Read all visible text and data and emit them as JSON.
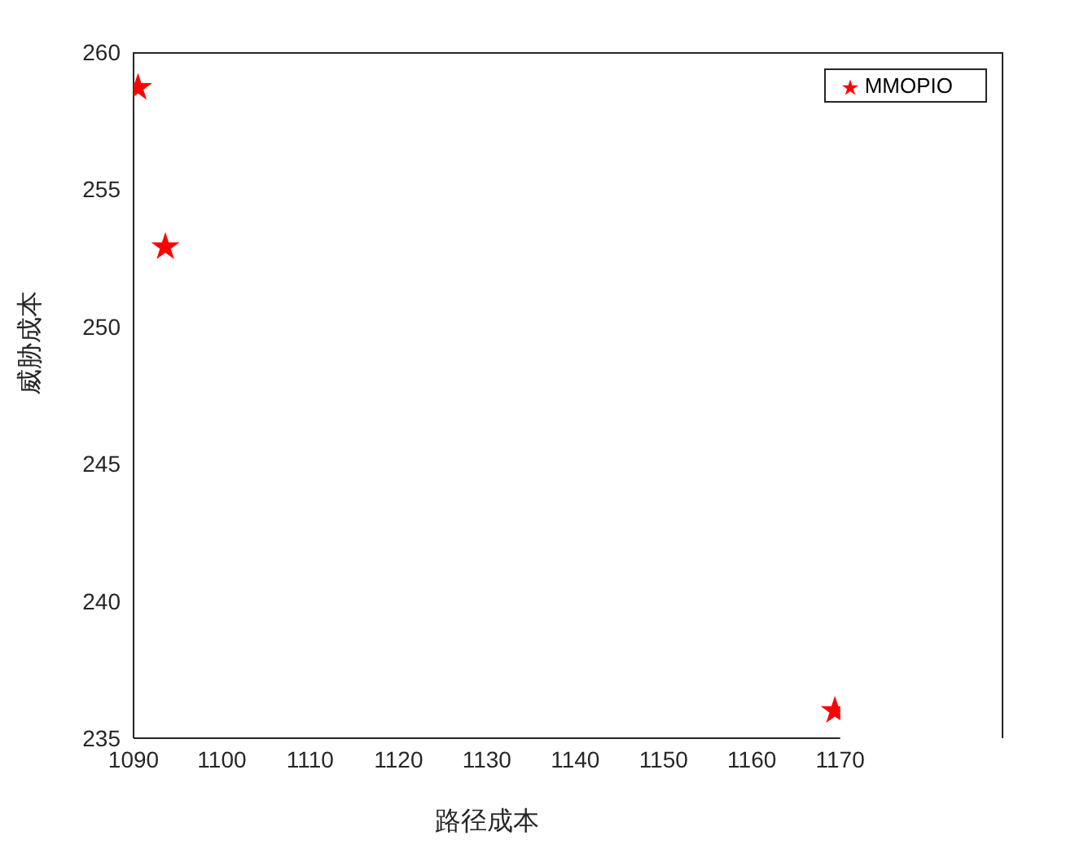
{
  "chart_data": {
    "type": "scatter",
    "xlabel": "路径成本",
    "ylabel": "威胁成本",
    "x": [
      1090.5,
      1093.6,
      1169.4
    ],
    "series": [
      {
        "name": "MMOPIO",
        "color": "#ff0000",
        "values": [
          258.7,
          252.9,
          236.0
        ]
      }
    ],
    "xlim": [
      1090,
      1170
    ],
    "xticks": [
      1090,
      1100,
      1110,
      1120,
      1130,
      1140,
      1150,
      1160,
      1170
    ],
    "ylim": [
      235,
      260
    ],
    "yticks": [
      235,
      240,
      245,
      250,
      255,
      260
    ],
    "grid": false,
    "legend": "top right",
    "marker": "star"
  }
}
